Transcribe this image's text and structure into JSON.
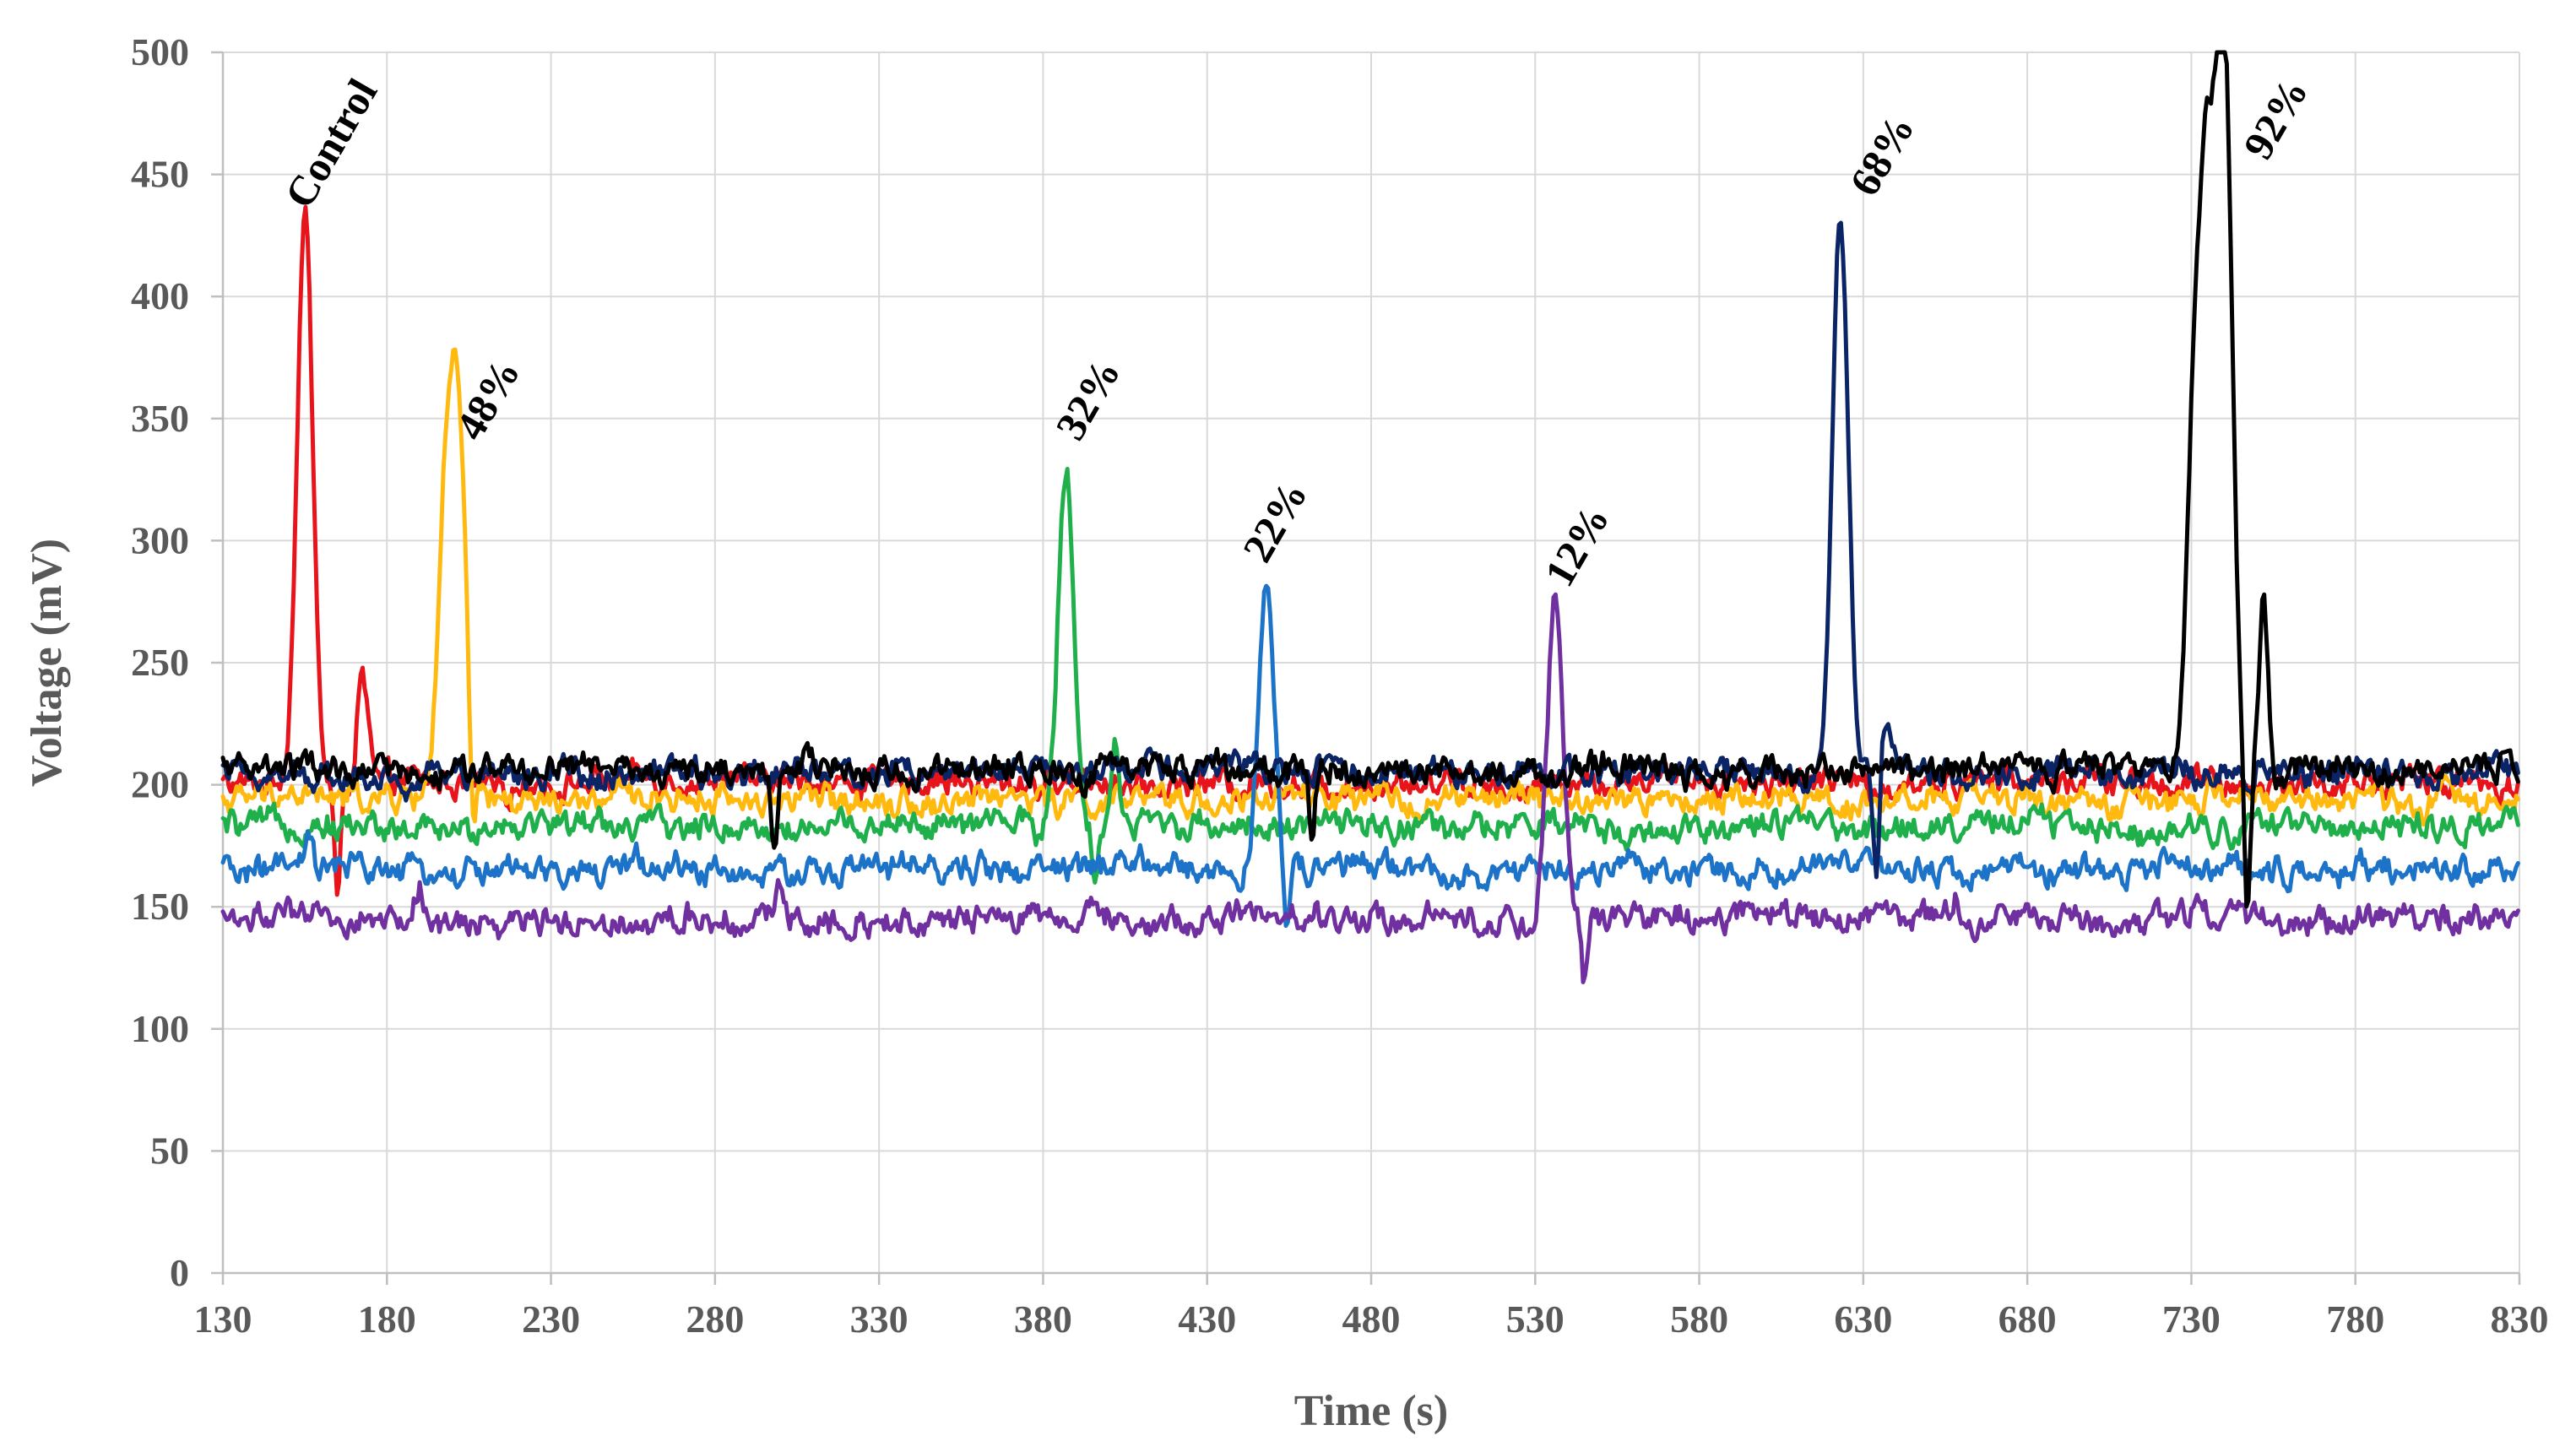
{
  "chart_data": {
    "type": "line",
    "xlabel": "Time (s)",
    "ylabel": "Voltage (mV)",
    "xlim": [
      130,
      830
    ],
    "ylim": [
      0,
      500
    ],
    "x_ticks": [
      130,
      180,
      230,
      280,
      330,
      380,
      430,
      480,
      530,
      580,
      630,
      680,
      730,
      780,
      830
    ],
    "y_ticks": [
      0,
      50,
      100,
      150,
      200,
      250,
      300,
      350,
      400,
      450,
      500
    ],
    "grid": true,
    "legend": "none",
    "series": [
      {
        "color": "#e8141c",
        "baseline": 201,
        "peaks": [
          [
            155,
            432
          ],
          [
            172,
            234
          ],
          [
            174,
            220
          ]
        ],
        "dips": [
          [
            165,
            152
          ]
        ]
      },
      {
        "color": "#ffb90f",
        "baseline": 194,
        "peaks": [
          [
            198,
            316
          ],
          [
            202,
            327
          ]
        ],
        "dips": [
          [
            206,
            156
          ]
        ]
      },
      {
        "color": "#1fb04b",
        "baseline": 183,
        "peaks": [
          [
            387,
            331
          ],
          [
            402,
            215
          ]
        ],
        "dips": [
          [
            378,
            175
          ],
          [
            396,
            162
          ]
        ]
      },
      {
        "color": "#1c73c8",
        "baseline": 165,
        "peaks": [
          [
            156,
            178
          ],
          [
            256,
            178
          ],
          [
            448,
            281
          ]
        ],
        "dips": [
          [
            454,
            140
          ]
        ]
      },
      {
        "color": "#7030a0",
        "baseline": 145,
        "peaks": [
          [
            190,
            160
          ],
          [
            300,
            158
          ],
          [
            536,
            275
          ],
          [
            658,
            155
          ]
        ],
        "dips": [
          [
            545,
            119
          ]
        ]
      },
      {
        "color": "#0a2466",
        "baseline": 205,
        "peaks": [
          [
            623,
            432
          ],
          [
            637,
            224
          ]
        ],
        "dips": [
          [
            634,
            162
          ]
        ]
      },
      {
        "color": "#000000",
        "baseline": 206,
        "peaks": [
          [
            731,
            345
          ],
          [
            735,
            410
          ],
          [
            740,
            500
          ],
          [
            752,
            279
          ]
        ],
        "dips": [
          [
            298,
            172
          ],
          [
            462,
            172
          ],
          [
            747,
            145
          ]
        ]
      }
    ],
    "annotations": [
      {
        "text": "Control",
        "x": 156,
        "y": 435
      },
      {
        "text": "48%",
        "x": 208,
        "y": 340
      },
      {
        "text": "32%",
        "x": 391,
        "y": 340
      },
      {
        "text": "22%",
        "x": 448,
        "y": 290
      },
      {
        "text": "12%",
        "x": 540,
        "y": 280
      },
      {
        "text": "68%",
        "x": 633,
        "y": 440
      },
      {
        "text": "92%",
        "x": 753,
        "y": 455
      }
    ]
  }
}
